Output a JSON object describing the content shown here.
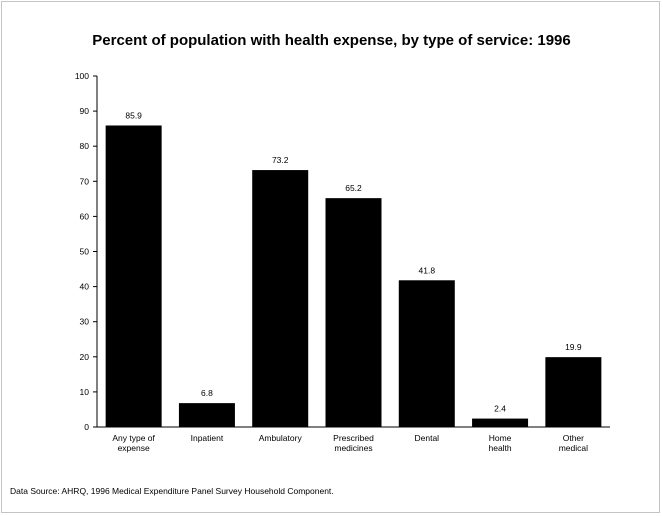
{
  "chart_data": {
    "type": "bar",
    "title": "Percent of population with health expense, by type of service: 1996",
    "xlabel": "",
    "ylabel": "",
    "ylim": [
      0,
      100
    ],
    "yticks": [
      0,
      10,
      20,
      30,
      40,
      50,
      60,
      70,
      80,
      90,
      100
    ],
    "grid": false,
    "categories": [
      [
        "Any type of",
        "expense"
      ],
      [
        "Inpatient"
      ],
      [
        "Ambulatory"
      ],
      [
        "Prescribed",
        "medicines"
      ],
      [
        "Dental"
      ],
      [
        "Home",
        "health"
      ],
      [
        "Other",
        "medical"
      ]
    ],
    "values": [
      85.9,
      6.8,
      73.2,
      65.2,
      41.8,
      2.4,
      19.9
    ],
    "value_labels": [
      "85.9",
      "6.8",
      "73.2",
      "65.2",
      "41.8",
      "2.4",
      "19.9"
    ],
    "bar_color": "#000000",
    "source": "Data Source: AHRQ, 1996 Medical Expenditure Panel Survey Household Component."
  }
}
